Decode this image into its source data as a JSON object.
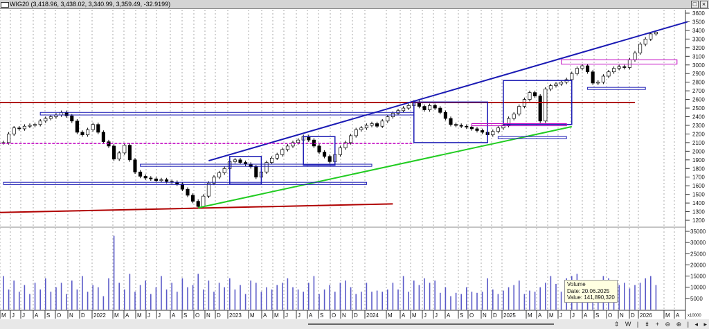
{
  "window": {
    "title": "WIG20 (3,418.96, 3,438.02, 3,340.99, 3,359.49, -32.9199)",
    "maximize_icon": "maximize-icon",
    "close_icon": "close-icon"
  },
  "tooltip": {
    "title": "Volume",
    "date": "Date: 20.06.2025",
    "value": "Value: 141,890,320"
  },
  "toolbar": {
    "icons": "⇕ W | ⇟ + ⊖ ⊕ | ◂ ▸"
  },
  "chart_data": {
    "type": "candlestick",
    "colors": {
      "up": "#ffffff",
      "down": "#000000",
      "volume": "#5a5ac8",
      "trend_blue": "#1a1ab4",
      "support_green": "#22cc22",
      "resistance_red": "#b00000",
      "magenta": "#c000c0"
    },
    "price_axis": {
      "ticks": [
        3600,
        3500,
        3400,
        3300,
        3200,
        3100,
        3000,
        2900,
        2800,
        2700,
        2600,
        2500,
        2400,
        2300,
        2200,
        2100,
        2000,
        1900,
        1800,
        1700,
        1600,
        1500,
        1400,
        1300,
        1200
      ],
      "range": [
        1200,
        3600
      ]
    },
    "volume_axis": {
      "ticks": [
        35000,
        30000,
        25000,
        20000,
        15000,
        10000,
        5000
      ],
      "range": [
        0,
        35000
      ],
      "multiplier": "x10000"
    },
    "x_ticks": [
      "M",
      "J",
      "J",
      "A",
      "S",
      "O",
      "N",
      "D",
      "2022",
      "M",
      "A",
      "M",
      "J",
      "J",
      "A",
      "S",
      "O",
      "N",
      "D",
      "2023",
      "M",
      "A",
      "M",
      "J",
      "J",
      "A",
      "S",
      "O",
      "N",
      "D",
      "2024",
      "M",
      "A",
      "M",
      "J",
      "J",
      "A",
      "S",
      "O",
      "N",
      "D",
      "2025",
      "M",
      "A",
      "M",
      "J",
      "J",
      "A",
      "S",
      "O",
      "N",
      "D",
      "2026",
      "M",
      "A"
    ],
    "closes": [
      2100,
      2200,
      2270,
      2260,
      2290,
      2300,
      2310,
      2350,
      2380,
      2400,
      2420,
      2450,
      2410,
      2350,
      2220,
      2190,
      2250,
      2310,
      2220,
      2110,
      2060,
      1910,
      1980,
      2070,
      1900,
      1760,
      1710,
      1690,
      1680,
      1660,
      1670,
      1650,
      1640,
      1620,
      1560,
      1490,
      1420,
      1360,
      1480,
      1630,
      1700,
      1750,
      1800,
      1880,
      1900,
      1870,
      1850,
      1820,
      1700,
      1760,
      1870,
      1920,
      1960,
      2020,
      2060,
      2100,
      2130,
      2170,
      2130,
      2060,
      1990,
      1940,
      1880,
      1960,
      2040,
      2100,
      2180,
      2250,
      2270,
      2300,
      2320,
      2290,
      2350,
      2400,
      2440,
      2470,
      2500,
      2530,
      2570,
      2520,
      2480,
      2530,
      2500,
      2450,
      2380,
      2310,
      2300,
      2290,
      2280,
      2260,
      2240,
      2220,
      2190,
      2230,
      2270,
      2300,
      2380,
      2430,
      2520,
      2600,
      2680,
      2640,
      2350,
      2720,
      2760,
      2780,
      2800,
      2830,
      2900,
      2960,
      2990,
      2920,
      2790,
      2800,
      2870,
      2920,
      2960,
      2980,
      2970,
      3060,
      3140,
      3240,
      3300,
      3360,
      3380
    ],
    "volumes": [
      15000,
      9000,
      13000,
      8000,
      11000,
      7000,
      12000,
      9000,
      14000,
      8000,
      10000,
      12000,
      7000,
      13000,
      9000,
      15000,
      8000,
      11000,
      10000,
      6000,
      14000,
      33000,
      12000,
      9000,
      16000,
      8000,
      11000,
      13000,
      7000,
      10000,
      15000,
      9000,
      12000,
      8000,
      14000,
      10000,
      11000,
      16000,
      9000,
      13000,
      8000,
      12000,
      10000,
      14000,
      9000,
      11000,
      7000,
      13000,
      12000,
      8000,
      10000,
      9000,
      11000,
      12000,
      14000,
      10000,
      9000,
      8000,
      12000,
      15000,
      7000,
      9000,
      11000,
      8000,
      12000,
      13000,
      10000,
      7000,
      8000,
      12000,
      8000,
      8500,
      8000,
      9000,
      12000,
      9000,
      15000,
      8000,
      13000,
      11000,
      14000,
      12000,
      13000,
      7500,
      10000,
      6000,
      7500,
      7000,
      10000,
      8000,
      7500,
      8000,
      14000,
      9000,
      7000,
      8500,
      10000,
      11000,
      13000,
      7000,
      8500,
      8000,
      10000,
      12000,
      15000,
      11500,
      8000,
      14000,
      15000,
      16000,
      12000,
      11000,
      9000,
      12000,
      15000,
      14000,
      12000,
      11000,
      12000,
      9500,
      11000,
      12000,
      14000,
      15000,
      11000
    ],
    "drawings": [
      {
        "kind": "line",
        "color": "resistance_red",
        "from": [
          -1,
          2565
        ],
        "to": [
          120,
          2565
        ]
      },
      {
        "kind": "line",
        "color": "resistance_red",
        "from": [
          -1,
          1290
        ],
        "to": [
          74,
          1390
        ]
      },
      {
        "kind": "line",
        "color": "trend_blue",
        "from": [
          39,
          1890
        ],
        "to": [
          130,
          3500
        ]
      },
      {
        "kind": "line",
        "color": "support_green",
        "from": [
          37,
          1345
        ],
        "to": [
          108,
          2285
        ]
      },
      {
        "kind": "dashed",
        "color": "magenta",
        "from": [
          -1,
          2090
        ],
        "to": [
          78,
          2090
        ]
      },
      {
        "kind": "band",
        "color": "trend_blue",
        "from": [
          7,
          2450
        ],
        "to": [
          78,
          2420
        ]
      },
      {
        "kind": "band",
        "color": "trend_blue",
        "from": [
          0,
          1640
        ],
        "to": [
          69,
          1615
        ]
      },
      {
        "kind": "band",
        "color": "trend_blue",
        "from": [
          26,
          1850
        ],
        "to": [
          70,
          1825
        ]
      },
      {
        "kind": "band",
        "color": "trend_blue",
        "from": [
          111,
          2740
        ],
        "to": [
          122,
          2720
        ]
      },
      {
        "kind": "band",
        "color": "trend_blue",
        "from": [
          94,
          2170
        ],
        "to": [
          107,
          2150
        ]
      },
      {
        "kind": "box",
        "color": "trend_blue",
        "from": [
          43,
          1940
        ],
        "to": [
          49,
          1620
        ]
      },
      {
        "kind": "box",
        "color": "trend_blue",
        "from": [
          57,
          2170
        ],
        "to": [
          63,
          1840
        ]
      },
      {
        "kind": "box",
        "color": "trend_blue",
        "from": [
          78,
          2570
        ],
        "to": [
          92,
          2100
        ]
      },
      {
        "kind": "box",
        "color": "trend_blue",
        "from": [
          95,
          2820
        ],
        "to": [
          108,
          2310
        ]
      },
      {
        "kind": "band",
        "color": "magenta",
        "from": [
          106,
          3060
        ],
        "to": [
          128,
          3010
        ]
      },
      {
        "kind": "band",
        "color": "magenta",
        "from": [
          89,
          2320
        ],
        "to": [
          107,
          2295
        ]
      }
    ]
  }
}
